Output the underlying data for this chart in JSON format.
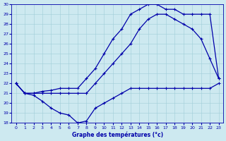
{
  "xlabel": "Graphe des températures (°c)",
  "xlim": [
    -0.5,
    23.5
  ],
  "ylim": [
    18,
    30
  ],
  "yticks": [
    18,
    19,
    20,
    21,
    22,
    23,
    24,
    25,
    26,
    27,
    28,
    29,
    30
  ],
  "xticks": [
    0,
    1,
    2,
    3,
    4,
    5,
    6,
    7,
    8,
    9,
    10,
    11,
    12,
    13,
    14,
    15,
    16,
    17,
    18,
    19,
    20,
    21,
    22,
    23
  ],
  "bg_color": "#cde9f0",
  "grid_color": "#a0cdd8",
  "line_color": "#0000aa",
  "line1_x": [
    0,
    1,
    2,
    3,
    4,
    5,
    6,
    7,
    8,
    9,
    10,
    11,
    12,
    13,
    14,
    15,
    16,
    17,
    18,
    19,
    20,
    21,
    22,
    23
  ],
  "line1_y": [
    22.0,
    21.0,
    20.8,
    20.2,
    19.5,
    19.0,
    18.8,
    18.0,
    18.2,
    19.5,
    20.0,
    20.5,
    21.0,
    21.5,
    21.5,
    21.5,
    21.5,
    21.5,
    21.5,
    21.5,
    21.5,
    21.5,
    21.5,
    22.0
  ],
  "line2_x": [
    0,
    1,
    2,
    3,
    4,
    5,
    6,
    7,
    8,
    9,
    10,
    11,
    12,
    13,
    14,
    15,
    16,
    17,
    18,
    19,
    20,
    21,
    22,
    23
  ],
  "line2_y": [
    22.0,
    21.0,
    21.0,
    21.0,
    21.0,
    21.0,
    21.0,
    21.0,
    21.0,
    22.0,
    23.0,
    24.0,
    25.0,
    26.0,
    27.5,
    28.5,
    29.0,
    29.0,
    28.5,
    28.0,
    27.5,
    26.5,
    24.5,
    22.5
  ],
  "line3_x": [
    0,
    1,
    2,
    3,
    4,
    5,
    6,
    7,
    8,
    9,
    10,
    11,
    12,
    13,
    14,
    15,
    16,
    17,
    18,
    19,
    20,
    21,
    22,
    23
  ],
  "line3_y": [
    22.0,
    21.0,
    21.0,
    21.2,
    21.3,
    21.5,
    21.5,
    21.5,
    22.5,
    23.5,
    25.0,
    26.5,
    27.5,
    29.0,
    29.5,
    30.0,
    30.0,
    29.5,
    29.5,
    29.0,
    29.0,
    29.0,
    29.0,
    22.5
  ]
}
